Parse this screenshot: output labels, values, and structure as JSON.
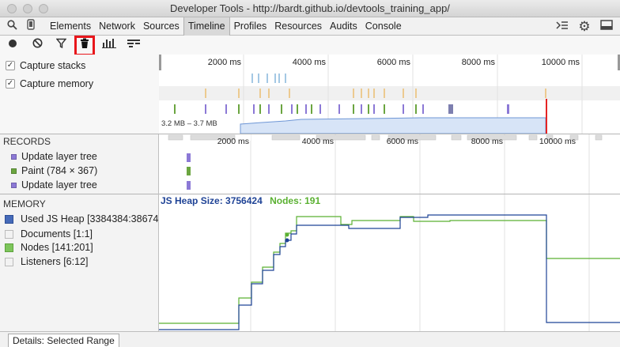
{
  "window": {
    "title": "Developer Tools - http://bardt.github.io/devtools_training_app/"
  },
  "tabbar": {
    "tabs": [
      {
        "label": "Elements",
        "selected": false
      },
      {
        "label": "Network",
        "selected": false
      },
      {
        "label": "Sources",
        "selected": false
      },
      {
        "label": "Timeline",
        "selected": true
      },
      {
        "label": "Profiles",
        "selected": false
      },
      {
        "label": "Resources",
        "selected": false
      },
      {
        "label": "Audits",
        "selected": false
      },
      {
        "label": "Console",
        "selected": false
      }
    ],
    "icons": [
      "search-icon",
      "device-icon",
      "drawer-toggle-icon",
      "gear-icon",
      "dock-icon"
    ]
  },
  "toolbar": {
    "icons": [
      "record-icon",
      "clear-icon",
      "filter-icon",
      "garbage-collect-icon",
      "bar-chart-icon",
      "flame-chart-icon"
    ],
    "highlight_color": "#e8161b"
  },
  "options": {
    "capture_stacks": {
      "label": "Capture stacks",
      "checked": true
    },
    "capture_memory": {
      "label": "Capture memory",
      "checked": true
    }
  },
  "overview": {
    "ticks": [
      "2000 ms",
      "4000 ms",
      "6000 ms",
      "8000 ms",
      "10000 ms"
    ],
    "memory_range": "3.2 MB – 3.7 MB"
  },
  "records": {
    "heading": "RECORDS",
    "ticks": [
      "2000 ms",
      "4000 ms",
      "6000 ms",
      "8000 ms",
      "10000 ms"
    ],
    "items": [
      {
        "label": "Update layer tree",
        "color": "#8c79d6"
      },
      {
        "label": "Paint (784 × 367)",
        "color": "#6ba540"
      },
      {
        "label": "Update layer tree",
        "color": "#8c79d6"
      }
    ]
  },
  "memory": {
    "heading": "MEMORY",
    "counters": [
      {
        "label": "Used JS Heap [3384384:38674",
        "color": "#456ab9"
      },
      {
        "label": "Documents [1:1]",
        "color": "#f2f2f2"
      },
      {
        "label": "Nodes [141:201]",
        "color": "#7dc55b"
      },
      {
        "label": "Listeners [6:12]",
        "color": "#f2f2f2"
      }
    ],
    "heap_size": "JS Heap Size: 3756424",
    "nodes": "Nodes: 191",
    "heap_color": "#1f4396",
    "nodes_color": "#5bb132"
  },
  "details": {
    "tab_label": "Details: Selected Range"
  }
}
